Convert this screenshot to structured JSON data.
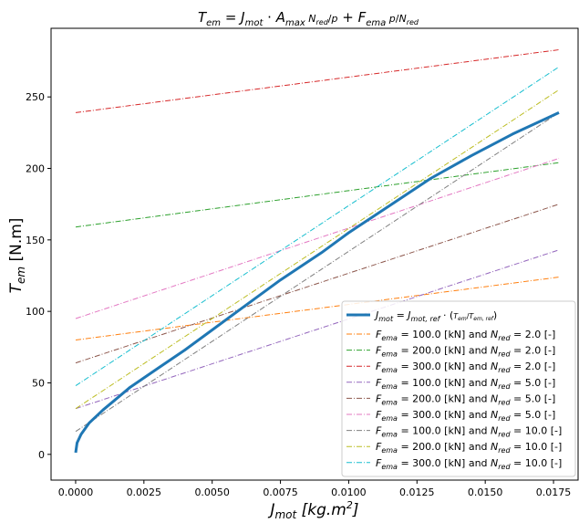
{
  "chart_data": {
    "type": "line",
    "title": "T_em = J_mot · A_max · N_red / p + F_ema · p / N_red",
    "xlabel": "J_mot [kg.m^2]",
    "ylabel": "T_em [N.m]",
    "xlim": [
      -0.0009,
      0.0184
    ],
    "ylim": [
      -18,
      298
    ],
    "x_ticks": [
      "0.0000",
      "0.0025",
      "0.0050",
      "0.0075",
      "0.0100",
      "0.0125",
      "0.0150",
      "0.0175"
    ],
    "y_ticks": [
      "0",
      "50",
      "100",
      "150",
      "200",
      "250"
    ],
    "x_tick_values": [
      0,
      0.0025,
      0.005,
      0.0075,
      0.01,
      0.0125,
      0.015,
      0.0175
    ],
    "y_tick_values": [
      0,
      50,
      100,
      150,
      200,
      250
    ],
    "legend_position": "lower-right",
    "grid": false,
    "main_curve": {
      "name": "J_mot = J_mot,ref · (T_em / T_em,ref)",
      "color": "#1f77b4",
      "points": [
        [
          0.0,
          1.2
        ],
        [
          5e-05,
          8
        ],
        [
          0.0002,
          14
        ],
        [
          0.0005,
          22
        ],
        [
          0.001,
          31
        ],
        [
          0.0015,
          39
        ],
        [
          0.002,
          47
        ],
        [
          0.003,
          60
        ],
        [
          0.004,
          73
        ],
        [
          0.005,
          87
        ],
        [
          0.006,
          101
        ],
        [
          0.0075,
          122
        ],
        [
          0.009,
          141
        ],
        [
          0.01,
          155
        ],
        [
          0.0115,
          174
        ],
        [
          0.013,
          193
        ],
        [
          0.0145,
          209
        ],
        [
          0.016,
          224
        ],
        [
          0.0177,
          239
        ]
      ]
    },
    "series": [
      {
        "name": "F_ema = 100.0 [kN] and N_red = 2.0 [-]",
        "color": "#ff7f0e",
        "start": [
          0.0,
          80
        ],
        "end": [
          0.0177,
          124
        ]
      },
      {
        "name": "F_ema = 200.0 [kN] and N_red = 2.0 [-]",
        "color": "#2ca02c",
        "start": [
          0.0,
          159
        ],
        "end": [
          0.0177,
          204
        ]
      },
      {
        "name": "F_ema = 300.0 [kN] and N_red = 2.0 [-]",
        "color": "#d62728",
        "start": [
          0.0,
          239
        ],
        "end": [
          0.0177,
          283
        ]
      },
      {
        "name": "F_ema = 100.0 [kN] and N_red = 5.0 [-]",
        "color": "#9467bd",
        "start": [
          0.0,
          32
        ],
        "end": [
          0.0177,
          143
        ]
      },
      {
        "name": "F_ema = 200.0 [kN] and N_red = 5.0 [-]",
        "color": "#8c564b",
        "start": [
          0.0,
          64
        ],
        "end": [
          0.0177,
          175
        ]
      },
      {
        "name": "F_ema = 300.0 [kN] and N_red = 5.0 [-]",
        "color": "#e377c2",
        "start": [
          0.0,
          95
        ],
        "end": [
          0.0177,
          207
        ]
      },
      {
        "name": "F_ema = 100.0 [kN] and N_red = 10.0 [-]",
        "color": "#7f7f7f",
        "start": [
          0.0,
          16
        ],
        "end": [
          0.0177,
          239
        ]
      },
      {
        "name": "F_ema = 200.0 [kN] and N_red = 10.0 [-]",
        "color": "#bcbd22",
        "start": [
          0.0,
          32
        ],
        "end": [
          0.0177,
          255
        ]
      },
      {
        "name": "F_ema = 300.0 [kN] and N_red = 10.0 [-]",
        "color": "#17becf",
        "start": [
          0.0,
          48
        ],
        "end": [
          0.0177,
          271
        ]
      }
    ]
  }
}
